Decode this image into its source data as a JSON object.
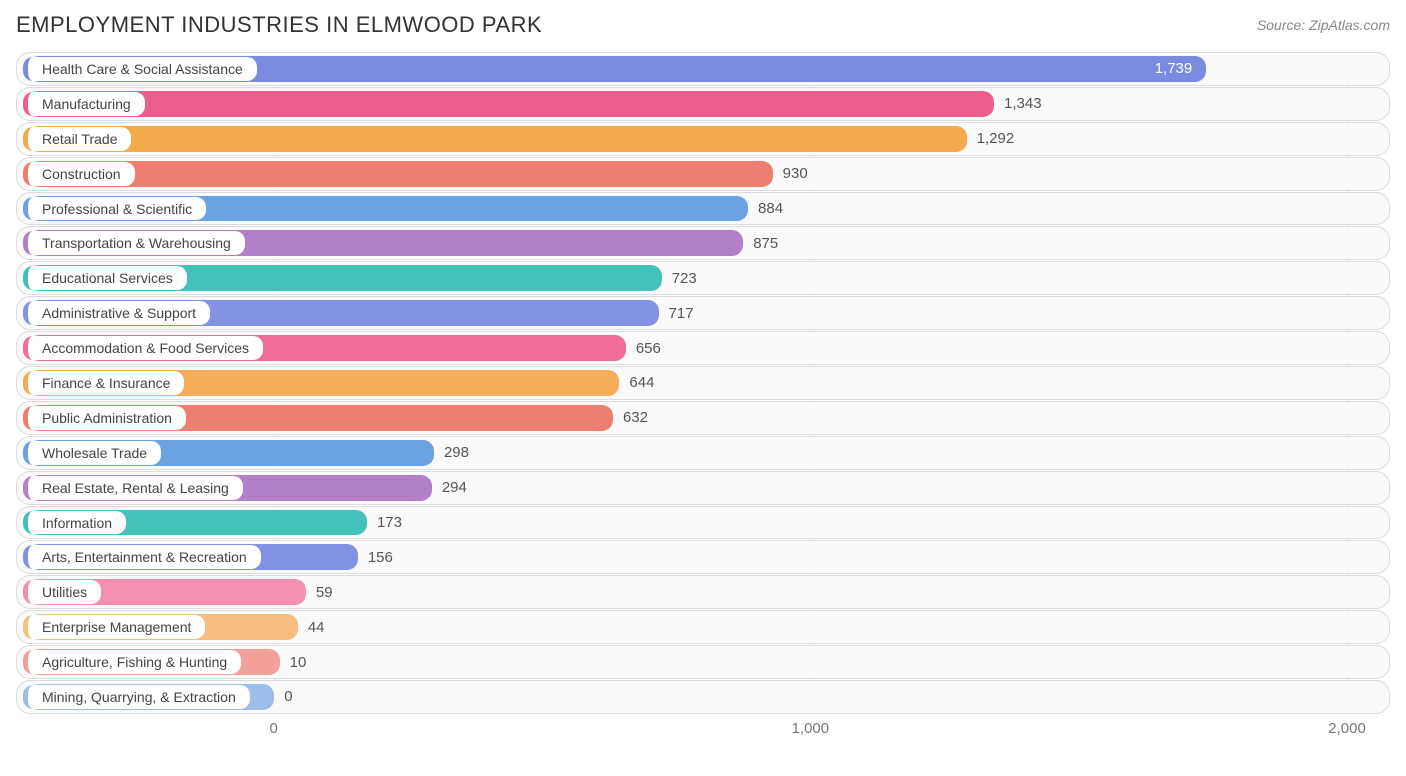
{
  "header": {
    "title": "EMPLOYMENT INDUSTRIES IN ELMWOOD PARK",
    "source_label": "Source:",
    "source_name": "ZipAtlas.com"
  },
  "chart": {
    "type": "horizontal-bar",
    "background_color": "#ffffff",
    "row_background": "#fafafa",
    "row_border_color": "#dcdcdc",
    "grid_color": "#dcdcdc",
    "text_color": "#555555",
    "axis_text_color": "#777777",
    "title_fontsize": 22,
    "label_fontsize": 14,
    "value_fontsize": 15,
    "xlim": [
      -480,
      2080
    ],
    "xticks": [
      {
        "value": 0,
        "label": "0"
      },
      {
        "value": 1000,
        "label": "1,000"
      },
      {
        "value": 2000,
        "label": "2,000"
      }
    ],
    "label_origin_x": 6,
    "bar_start_x": -460,
    "series": [
      {
        "label": "Health Care & Social Assistance",
        "value": 1739,
        "display": "1,739",
        "color": "#7b8ce0",
        "value_inside": true
      },
      {
        "label": "Manufacturing",
        "value": 1343,
        "display": "1,343",
        "color": "#ec5e8c",
        "value_inside": false
      },
      {
        "label": "Retail Trade",
        "value": 1292,
        "display": "1,292",
        "color": "#f4a94a",
        "value_inside": false
      },
      {
        "label": "Construction",
        "value": 930,
        "display": "930",
        "color": "#ee7f70",
        "value_inside": false
      },
      {
        "label": "Professional & Scientific",
        "value": 884,
        "display": "884",
        "color": "#6ba2e2",
        "value_inside": false
      },
      {
        "label": "Transportation & Warehousing",
        "value": 875,
        "display": "875",
        "color": "#b37fc9",
        "value_inside": false
      },
      {
        "label": "Educational Services",
        "value": 723,
        "display": "723",
        "color": "#45c1bc",
        "value_inside": false
      },
      {
        "label": "Administrative & Support",
        "value": 717,
        "display": "717",
        "color": "#8492e3",
        "value_inside": false
      },
      {
        "label": "Accommodation & Food Services",
        "value": 656,
        "display": "656",
        "color": "#ef6d9b",
        "value_inside": false
      },
      {
        "label": "Finance & Insurance",
        "value": 644,
        "display": "644",
        "color": "#f4ad58",
        "value_inside": false
      },
      {
        "label": "Public Administration",
        "value": 632,
        "display": "632",
        "color": "#ee7f70",
        "value_inside": false
      },
      {
        "label": "Wholesale Trade",
        "value": 298,
        "display": "298",
        "color": "#6ba2e2",
        "value_inside": false
      },
      {
        "label": "Real Estate, Rental & Leasing",
        "value": 294,
        "display": "294",
        "color": "#b37fc9",
        "value_inside": false
      },
      {
        "label": "Information",
        "value": 173,
        "display": "173",
        "color": "#45c1bc",
        "value_inside": false
      },
      {
        "label": "Arts, Entertainment & Recreation",
        "value": 156,
        "display": "156",
        "color": "#8492e3",
        "value_inside": false
      },
      {
        "label": "Utilities",
        "value": 59,
        "display": "59",
        "color": "#f28fb3",
        "value_inside": false
      },
      {
        "label": "Enterprise Management",
        "value": 44,
        "display": "44",
        "color": "#f6be7f",
        "value_inside": false
      },
      {
        "label": "Agriculture, Fishing & Hunting",
        "value": 10,
        "display": "10",
        "color": "#f2a099",
        "value_inside": false
      },
      {
        "label": "Mining, Quarrying, & Extraction",
        "value": 0,
        "display": "0",
        "color": "#9cbfe9",
        "value_inside": false
      }
    ]
  }
}
